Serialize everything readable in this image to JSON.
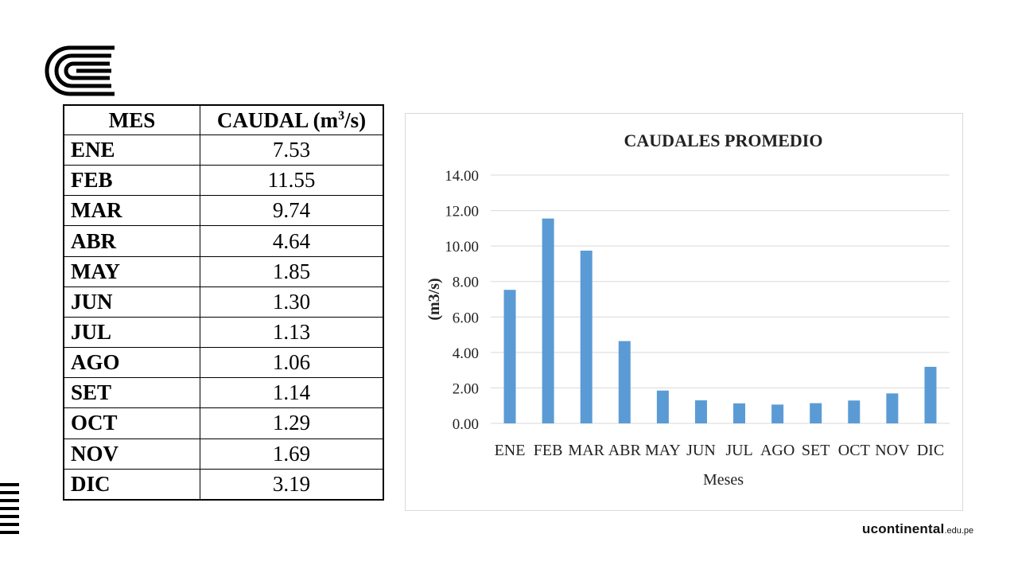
{
  "brand": {
    "name": "ucontinental",
    "domain": ".edu.pe"
  },
  "table": {
    "header_month": "MES",
    "header_flow_prefix": "CAUDAL (m",
    "header_flow_sup": "3",
    "header_flow_suffix": "/s)",
    "rows": [
      {
        "mes": "ENE",
        "caudal": "7.53"
      },
      {
        "mes": "FEB",
        "caudal": "11.55"
      },
      {
        "mes": "MAR",
        "caudal": "9.74"
      },
      {
        "mes": "ABR",
        "caudal": "4.64"
      },
      {
        "mes": "MAY",
        "caudal": "1.85"
      },
      {
        "mes": "JUN",
        "caudal": "1.30"
      },
      {
        "mes": "JUL",
        "caudal": "1.13"
      },
      {
        "mes": "AGO",
        "caudal": "1.06"
      },
      {
        "mes": "SET",
        "caudal": "1.14"
      },
      {
        "mes": "OCT",
        "caudal": "1.29"
      },
      {
        "mes": "NOV",
        "caudal": "1.69"
      },
      {
        "mes": "DIC",
        "caudal": "3.19"
      }
    ]
  },
  "chart_data": {
    "type": "bar",
    "title": "CAUDALES PROMEDIO",
    "xlabel": "Meses",
    "ylabel": "(m3/s)",
    "categories": [
      "ENE",
      "FEB",
      "MAR",
      "ABR",
      "MAY",
      "JUN",
      "JUL",
      "AGO",
      "SET",
      "OCT",
      "NOV",
      "DIC"
    ],
    "values": [
      7.53,
      11.55,
      9.74,
      4.64,
      1.85,
      1.3,
      1.13,
      1.06,
      1.14,
      1.29,
      1.69,
      3.19
    ],
    "ylim": [
      0,
      14
    ],
    "yticks": [
      "0.00",
      "2.00",
      "4.00",
      "6.00",
      "8.00",
      "10.00",
      "12.00",
      "14.00"
    ],
    "grid": true,
    "legend": "none",
    "bar_color": "#5b9bd5",
    "grid_color": "#d9d9d9"
  }
}
